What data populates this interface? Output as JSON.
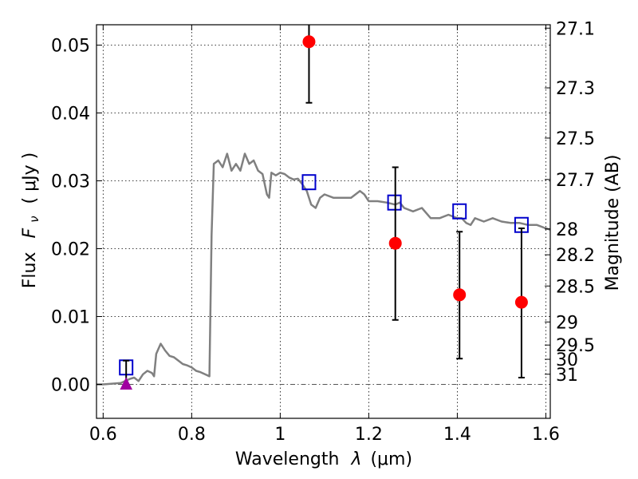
{
  "chart_data": {
    "type": "line",
    "title": "",
    "xlabel": "Wavelength",
    "xlabel_symbol": "λ",
    "xlabel_unit": "(μm)",
    "ylabel": "Flux",
    "ylabel_symbol": "F",
    "ylabel_symbol_sub": "ν",
    "ylabel_unit": "( μJy )",
    "y2label": "Magnitude (AB)",
    "xlim": [
      0.585,
      1.61
    ],
    "ylim": [
      -0.005,
      0.053
    ],
    "grid": true,
    "x_ticks": [
      0.6,
      0.8,
      1.0,
      1.2,
      1.4,
      1.6
    ],
    "x_tick_labels": [
      "0.6",
      "0.8",
      "1",
      "1.2",
      "1.4",
      "1.6"
    ],
    "y_ticks": [
      0.0,
      0.01,
      0.02,
      0.03,
      0.04,
      0.05
    ],
    "y_tick_labels": [
      "0.00",
      "0.01",
      "0.02",
      "0.03",
      "0.04",
      "0.05"
    ],
    "y2_ticks": [
      {
        "flux": 0.0525,
        "label": "27.1"
      },
      {
        "flux": 0.0437,
        "label": "27.3"
      },
      {
        "flux": 0.0363,
        "label": "27.5"
      },
      {
        "flux": 0.0302,
        "label": "27.7"
      },
      {
        "flux": 0.0229,
        "label": "28"
      },
      {
        "flux": 0.0191,
        "label": "28.2"
      },
      {
        "flux": 0.0145,
        "label": "28.5"
      },
      {
        "flux": 0.0092,
        "label": "29"
      },
      {
        "flux": 0.0058,
        "label": "29.5"
      },
      {
        "flux": 0.0037,
        "label": "30"
      },
      {
        "flux": 0.0015,
        "label": "31"
      }
    ],
    "series": [
      {
        "kind": "line",
        "color": "#808080",
        "x": [
          0.585,
          0.6,
          0.64,
          0.66,
          0.67,
          0.68,
          0.69,
          0.7,
          0.71,
          0.715,
          0.72,
          0.73,
          0.74,
          0.75,
          0.76,
          0.77,
          0.78,
          0.79,
          0.8,
          0.81,
          0.82,
          0.83,
          0.84,
          0.845,
          0.85,
          0.86,
          0.87,
          0.88,
          0.89,
          0.9,
          0.91,
          0.92,
          0.93,
          0.94,
          0.95,
          0.96,
          0.97,
          0.975,
          0.98,
          0.99,
          1.0,
          1.01,
          1.02,
          1.03,
          1.04,
          1.05,
          1.06,
          1.07,
          1.08,
          1.09,
          1.1,
          1.12,
          1.14,
          1.16,
          1.18,
          1.19,
          1.2,
          1.22,
          1.24,
          1.26,
          1.27,
          1.28,
          1.3,
          1.32,
          1.34,
          1.36,
          1.38,
          1.4,
          1.41,
          1.42,
          1.43,
          1.44,
          1.46,
          1.48,
          1.5,
          1.52,
          1.54,
          1.56,
          1.58,
          1.6,
          1.61
        ],
        "values": [
          0.0,
          0.0,
          0.0002,
          0.0008,
          0.001,
          0.0005,
          0.0015,
          0.002,
          0.0017,
          0.0012,
          0.0045,
          0.006,
          0.005,
          0.0042,
          0.004,
          0.0035,
          0.003,
          0.0028,
          0.0025,
          0.002,
          0.0018,
          0.0015,
          0.0012,
          0.022,
          0.0325,
          0.033,
          0.032,
          0.034,
          0.0315,
          0.0325,
          0.0315,
          0.034,
          0.0325,
          0.033,
          0.0315,
          0.031,
          0.028,
          0.0275,
          0.0312,
          0.0308,
          0.0312,
          0.031,
          0.0305,
          0.0302,
          0.0303,
          0.0295,
          0.0285,
          0.0265,
          0.026,
          0.0275,
          0.028,
          0.0275,
          0.0275,
          0.0275,
          0.0285,
          0.028,
          0.027,
          0.027,
          0.0268,
          0.0265,
          0.0268,
          0.026,
          0.0255,
          0.026,
          0.0245,
          0.0245,
          0.025,
          0.0245,
          0.0245,
          0.0238,
          0.0235,
          0.0245,
          0.024,
          0.0245,
          0.024,
          0.0238,
          0.0238,
          0.0235,
          0.0235,
          0.023,
          0.0228
        ]
      },
      {
        "kind": "square",
        "color": "#0000cc",
        "x": [
          0.652,
          1.065,
          1.258,
          1.405,
          1.545
        ],
        "values": [
          0.0025,
          0.0298,
          0.0268,
          0.0255,
          0.0235
        ]
      },
      {
        "kind": "circle",
        "color": "#ff0000",
        "x": [
          1.065,
          1.26,
          1.405,
          1.545
        ],
        "values": [
          0.0505,
          0.0208,
          0.0132,
          0.0121
        ],
        "err_low": [
          0.0415,
          0.0095,
          0.0038,
          0.001
        ],
        "err_high": [
          0.055,
          0.032,
          0.0225,
          0.023
        ]
      },
      {
        "kind": "triangle",
        "color": "#a000a0",
        "x": [
          0.652
        ],
        "values": [
          0.0
        ],
        "err_low": [
          0.0
        ],
        "err_high": [
          0.0035
        ]
      }
    ],
    "reference_line": {
      "y": 0.0,
      "style": "dash-dot",
      "color": "#555555"
    }
  }
}
